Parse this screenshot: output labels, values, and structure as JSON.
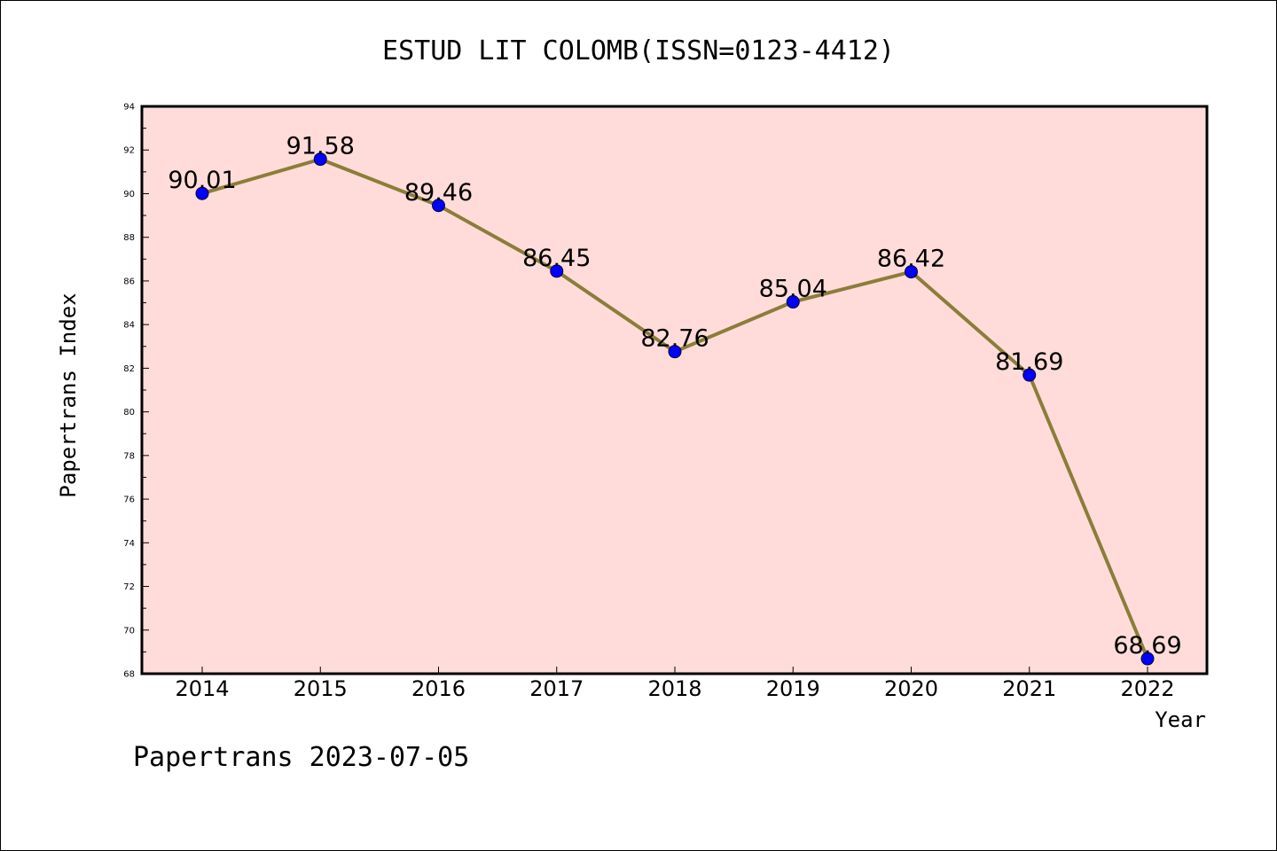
{
  "chart_data": {
    "type": "line",
    "title": "ESTUD LIT COLOMB(ISSN=0123-4412)",
    "xlabel": "Year",
    "ylabel": "Papertrans Index",
    "x": [
      "2014",
      "2015",
      "2016",
      "2017",
      "2018",
      "2019",
      "2020",
      "2021",
      "2022"
    ],
    "series": [
      {
        "values": [
          90.01,
          91.58,
          89.46,
          86.45,
          82.76,
          85.04,
          86.42,
          81.69,
          68.69
        ],
        "labels": [
          "90.01",
          "91.58",
          "89.46",
          "86.45",
          "82.76",
          "85.04",
          "86.42",
          "81.69",
          "68.69"
        ],
        "line_color": "#8b7d3a",
        "marker_color": "#0000ff"
      }
    ],
    "ylim": [
      68,
      94
    ],
    "yticks": [
      "68",
      "70",
      "72",
      "74",
      "76",
      "78",
      "80",
      "82",
      "84",
      "86",
      "88",
      "90",
      "92",
      "94"
    ],
    "plot_background": "#ffdcd9",
    "grid": false,
    "legend": "none"
  },
  "footer": "Papertrans 2023-07-05"
}
